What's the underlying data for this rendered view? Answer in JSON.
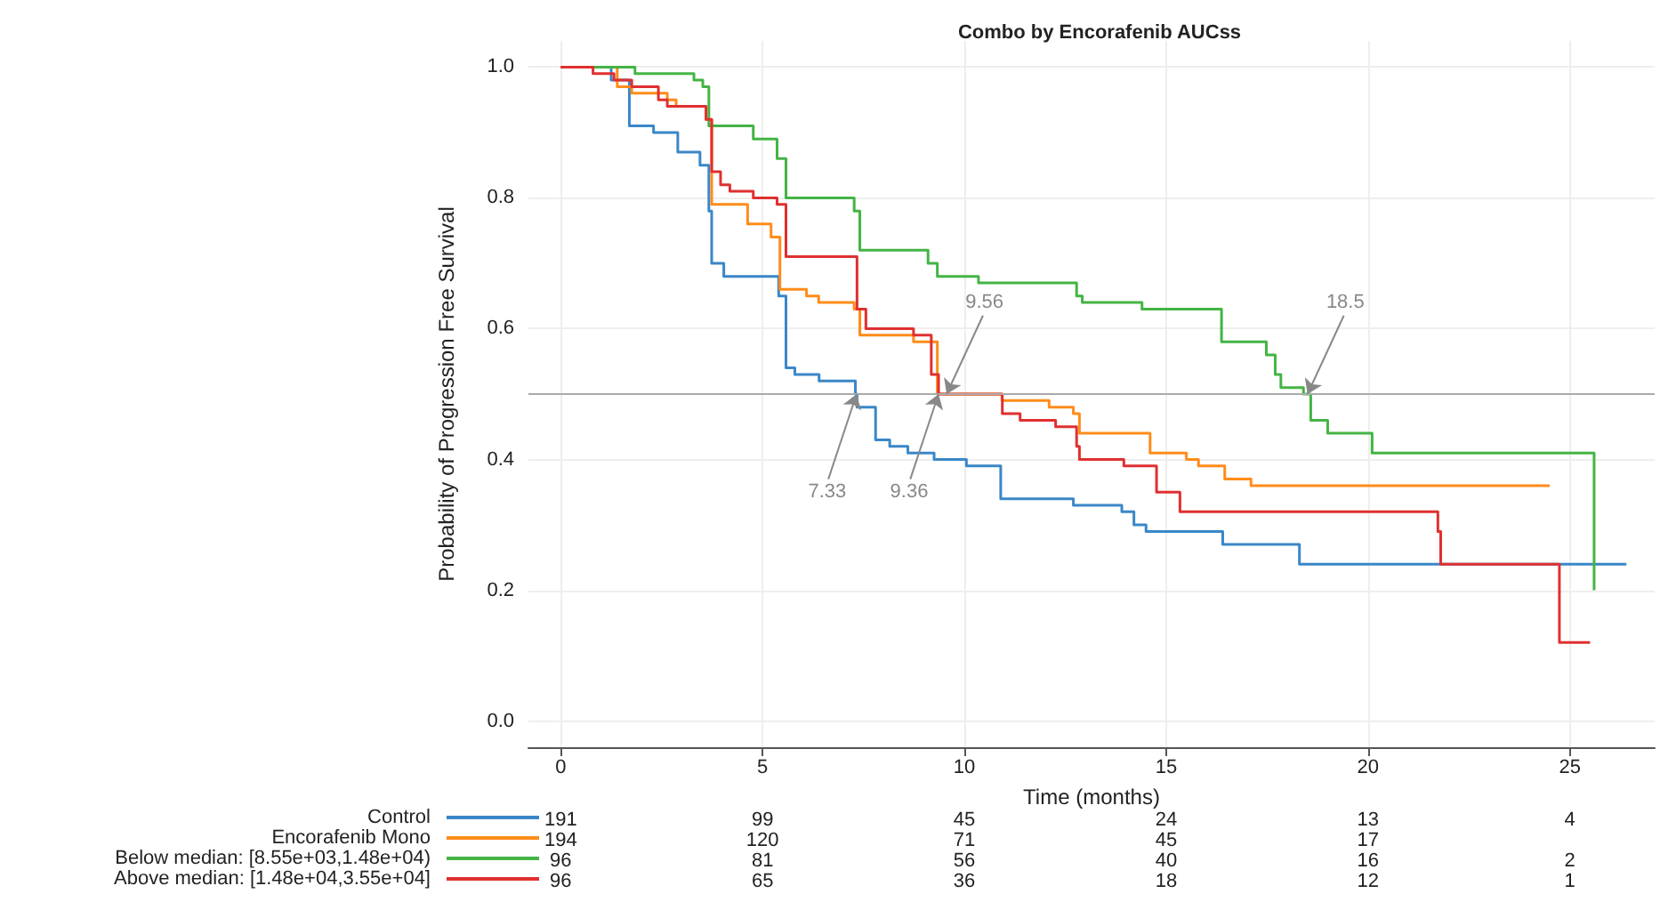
{
  "chart_data": {
    "type": "step",
    "title": "Combo by Encorafenib AUCss",
    "xlabel": "Time (months)",
    "ylabel": "Probability of Progression Free Survival",
    "xlim": [
      -0.8,
      27.1
    ],
    "xticks": [
      0,
      5,
      10,
      15,
      20,
      25
    ],
    "ylim": [
      -0.04,
      1.04
    ],
    "yticks": [
      {
        "value": 0,
        "label": "0.0"
      },
      {
        "value": 0.2,
        "label": "0.2"
      },
      {
        "value": 0.4,
        "label": "0.4"
      },
      {
        "value": 0.6,
        "label": "0.6"
      },
      {
        "value": 0.8,
        "label": "0.8"
      },
      {
        "value": 1,
        "label": "1.0"
      }
    ],
    "grid": true,
    "legend": "bottom left",
    "marker": "none",
    "line_style": "solid",
    "series": [
      {
        "name": "Control",
        "color": "#3a87c8",
        "x": [
          0,
          1.25,
          1.7,
          2.3,
          2.9,
          3.45,
          3.67,
          3.74,
          4.04,
          5.4,
          5.58,
          5.8,
          6.4,
          7.3,
          7.34,
          7.8,
          8.15,
          8.6,
          9.25,
          10.05,
          10.9,
          12.7,
          13.9,
          14.2,
          14.5,
          16.4,
          18.3,
          26.4
        ],
        "values": [
          1.0,
          0.98,
          0.91,
          0.9,
          0.87,
          0.85,
          0.78,
          0.7,
          0.68,
          0.65,
          0.54,
          0.53,
          0.52,
          0.5,
          0.48,
          0.43,
          0.42,
          0.41,
          0.4,
          0.39,
          0.34,
          0.33,
          0.32,
          0.3,
          0.29,
          0.27,
          0.24,
          0.24
        ]
      },
      {
        "name": "Encorafenib Mono",
        "color": "#ff8c1a",
        "x": [
          0,
          1.4,
          1.76,
          2.28,
          2.64,
          2.86,
          3.6,
          3.74,
          4.4,
          4.63,
          5.21,
          5.43,
          5.8,
          6.09,
          6.39,
          7.27,
          7.41,
          8.74,
          9.33,
          9.56,
          10.93,
          12.1,
          12.7,
          12.85,
          13.66,
          14.6,
          15.5,
          15.8,
          16.45,
          17.1,
          24.5
        ],
        "values": [
          1.0,
          0.97,
          0.96,
          0.96,
          0.95,
          0.94,
          0.92,
          0.79,
          0.79,
          0.76,
          0.74,
          0.66,
          0.66,
          0.65,
          0.64,
          0.63,
          0.59,
          0.58,
          0.5,
          0.5,
          0.49,
          0.48,
          0.47,
          0.44,
          0.44,
          0.41,
          0.4,
          0.39,
          0.37,
          0.36,
          0.36
        ]
      },
      {
        "name": "Below median: [8.55e+03,1.48e+04)",
        "color": "#44b444",
        "x": [
          0,
          1.84,
          3.3,
          3.52,
          3.67,
          4.19,
          4.77,
          5.36,
          5.58,
          7.27,
          7.41,
          9.1,
          9.33,
          10.35,
          12.78,
          12.92,
          14.4,
          16.37,
          17.48,
          17.7,
          17.84,
          18.4,
          18.58,
          19.0,
          20.1,
          25.6
        ],
        "values": [
          1.0,
          0.99,
          0.98,
          0.97,
          0.91,
          0.91,
          0.89,
          0.86,
          0.8,
          0.78,
          0.72,
          0.7,
          0.68,
          0.67,
          0.65,
          0.64,
          0.63,
          0.58,
          0.56,
          0.53,
          0.51,
          0.5,
          0.46,
          0.44,
          0.41,
          0.2
        ]
      },
      {
        "name": "Above median: [1.48e+04,3.55e+04]",
        "color": "#e03030",
        "x": [
          0,
          0.8,
          1.32,
          1.76,
          2.42,
          2.64,
          3.23,
          3.6,
          3.74,
          3.96,
          4.19,
          4.77,
          5.36,
          5.58,
          7.34,
          7.56,
          8.74,
          9.18,
          9.36,
          10.94,
          11.38,
          12.26,
          12.78,
          12.85,
          13.95,
          14.76,
          15.34,
          21.73,
          21.8,
          24.74,
          25.5
        ],
        "values": [
          1.0,
          0.99,
          0.98,
          0.97,
          0.95,
          0.94,
          0.94,
          0.92,
          0.84,
          0.82,
          0.81,
          0.8,
          0.79,
          0.71,
          0.63,
          0.6,
          0.59,
          0.53,
          0.5,
          0.47,
          0.46,
          0.45,
          0.42,
          0.4,
          0.39,
          0.35,
          0.32,
          0.29,
          0.24,
          0.12,
          0.12
        ]
      }
    ],
    "ref_lines": [
      {
        "axis": "y",
        "value": 0.5,
        "color": "#aaaaaa"
      }
    ],
    "annotations": [
      {
        "text": "7.33",
        "x": 7.33,
        "y": 0.5
      },
      {
        "text": "9.36",
        "x": 9.36,
        "y": 0.5
      },
      {
        "text": "9.56",
        "x": 9.56,
        "y": 0.5
      },
      {
        "text": "18.5",
        "x": 18.5,
        "y": 0.5
      },
      "191\t99\t45\t24\t13\t4",
      "194\t120\t71\t45\t17",
      "96\t81\t56\t40\t16\t2",
      "96\t65\t36\t18\t12\t1"
    ]
  }
}
